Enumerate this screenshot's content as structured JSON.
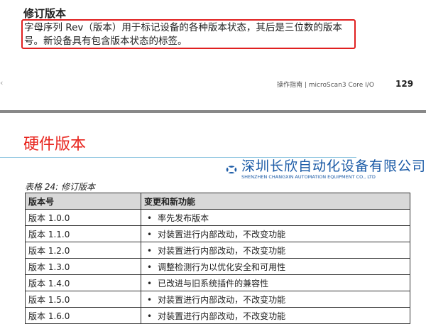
{
  "section": {
    "title": "修订版本",
    "note": "字母序列 Rev（版本）用于标记设备的各种版本状态，其后是三位数的版本号。新设备具有包含版本状态的标签。"
  },
  "footer": {
    "left_mark": "‹",
    "text": "操作指南 | microScan3 Core I/O",
    "page": "129"
  },
  "hardware": {
    "title": "硬件版本",
    "caption": "表格 24: 修订版本",
    "headers": [
      "版本号",
      "变更和新功能"
    ],
    "rows": [
      [
        "版本 1.0.0",
        "率先发布版本"
      ],
      [
        "版本 1.1.0",
        "对装置进行内部改动，不改变功能"
      ],
      [
        "版本 1.2.0",
        "对装置进行内部改动，不改变功能"
      ],
      [
        "版本 1.3.0",
        "调整检测行为以优化安全和可用性"
      ],
      [
        "版本 1.4.0",
        "已改进与旧系统插件的兼容性"
      ],
      [
        "版本 1.5.0",
        "对装置进行内部改动，不改变功能"
      ],
      [
        "版本 1.6.0",
        "对装置进行内部改动，不改变功能"
      ]
    ]
  },
  "watermark": {
    "company_cn": "深圳长欣自动化设备有限公司",
    "company_en": "SHENZHEN CHANGXIN AUTOMATION EQUIPMENT CO., LTD",
    "color": "#1a5aa6"
  }
}
